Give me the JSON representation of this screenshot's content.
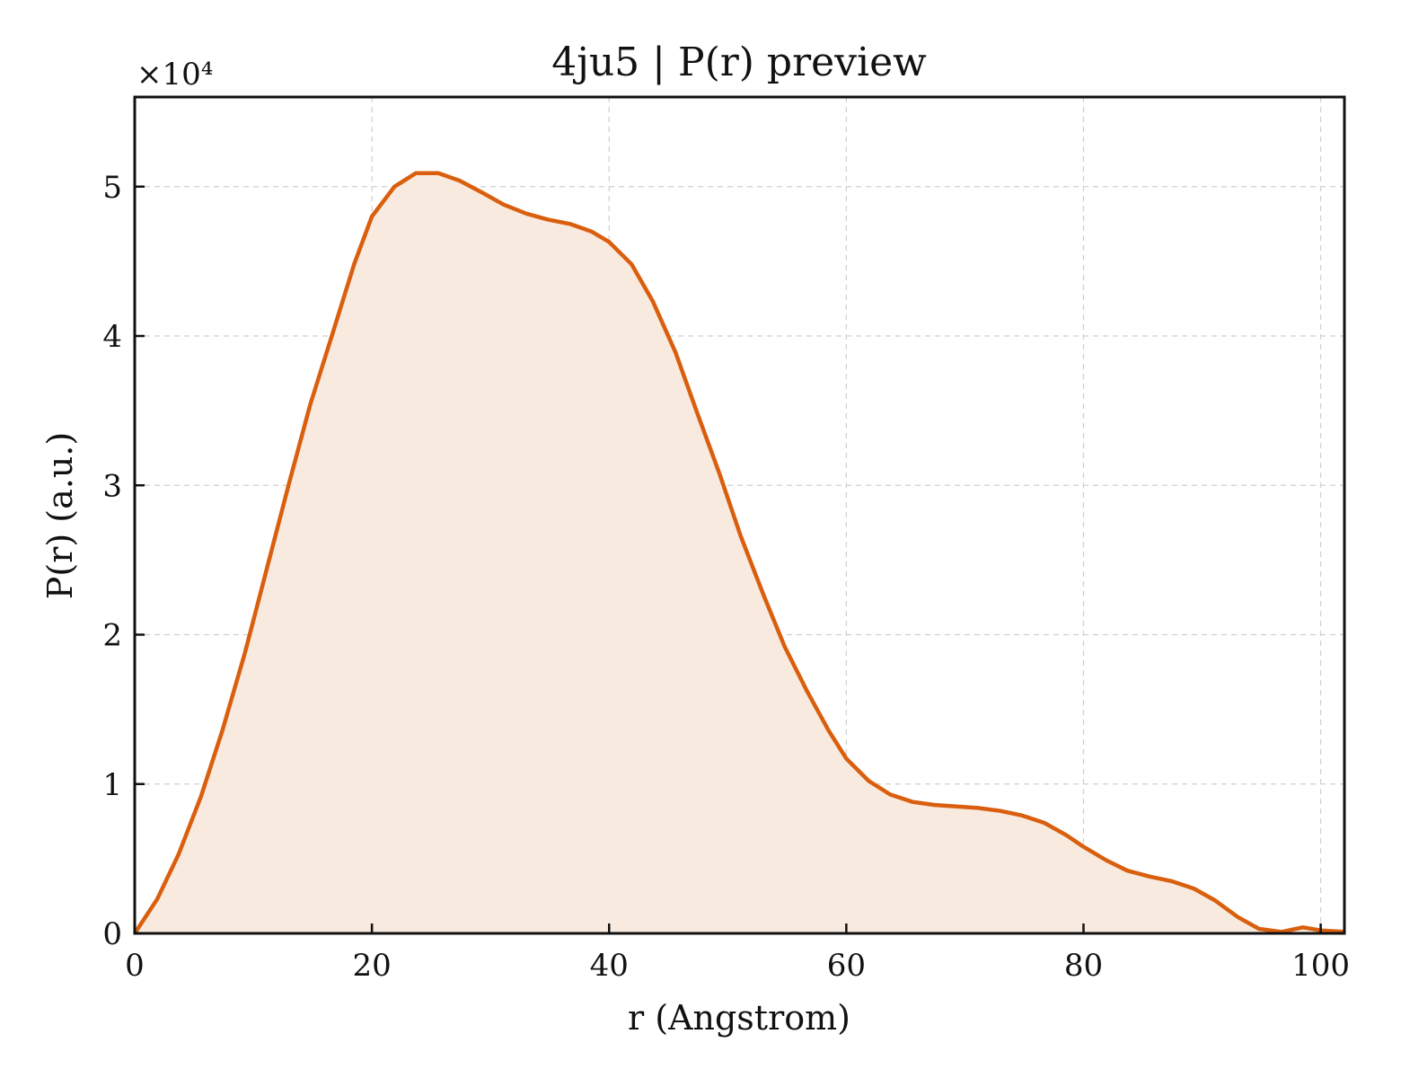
{
  "chart_data": {
    "type": "area",
    "title": "4ju5 | P(r) preview",
    "xlabel": "r (Angstrom)",
    "ylabel": "P(r) (a.u.)",
    "y_multiplier_label": "×10⁴",
    "y_scale_factor": 10000,
    "xlim": [
      0,
      102
    ],
    "ylim": [
      0,
      56000
    ],
    "xticks": [
      0,
      20,
      40,
      60,
      80,
      100
    ],
    "yticks": [
      0,
      10000,
      20000,
      30000,
      40000,
      50000
    ],
    "ytick_labels": [
      "0",
      "1",
      "2",
      "3",
      "4",
      "5"
    ],
    "grid": true,
    "line_color": "#d95f0e",
    "fill_color": "#f9eadf",
    "series": [
      {
        "x": [
          0,
          1.9,
          3.7,
          5.6,
          7.4,
          9.3,
          11.1,
          13.0,
          14.8,
          16.7,
          18.5,
          20.0,
          21.9,
          23.7,
          25.6,
          27.4,
          29.3,
          31.1,
          33.0,
          34.8,
          36.7,
          38.5,
          40.0,
          41.9,
          43.7,
          45.6,
          47.4,
          49.3,
          51.1,
          53.0,
          54.8,
          56.7,
          58.5,
          60.0,
          61.9,
          63.7,
          65.6,
          67.4,
          69.3,
          71.1,
          73.0,
          74.8,
          76.7,
          78.5,
          80.0,
          81.9,
          83.7,
          85.6,
          87.4,
          89.3,
          91.1,
          93.0,
          94.8,
          96.7,
          98.5,
          100.0,
          102.0
        ],
        "y": [
          0,
          2300,
          5300,
          9200,
          13600,
          18800,
          24300,
          30100,
          35400,
          40200,
          44800,
          48000,
          50000,
          50900,
          50900,
          50400,
          49600,
          48800,
          48200,
          47800,
          47500,
          47000,
          46300,
          44800,
          42300,
          38900,
          34900,
          30800,
          26600,
          22700,
          19200,
          16200,
          13600,
          11700,
          10200,
          9300,
          8800,
          8600,
          8500,
          8400,
          8200,
          7900,
          7400,
          6600,
          5800,
          4900,
          4200,
          3800,
          3500,
          3000,
          2200,
          1100,
          300,
          100,
          400,
          200,
          100
        ]
      }
    ]
  }
}
